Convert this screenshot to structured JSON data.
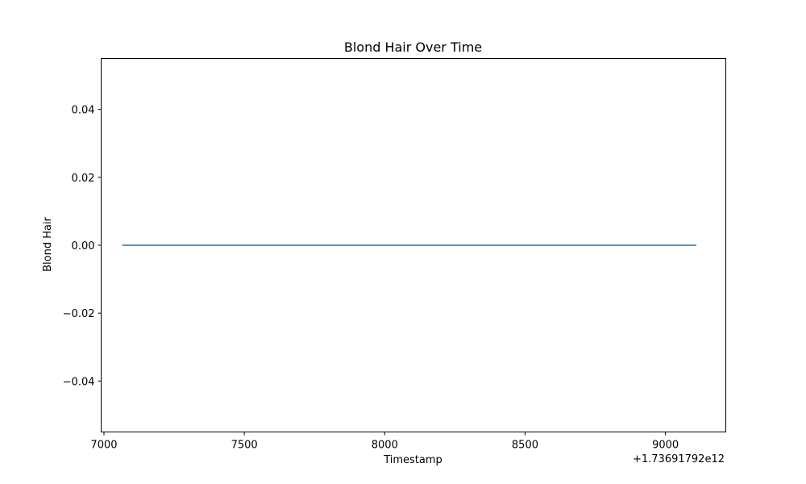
{
  "chart_data": {
    "type": "line",
    "title": "Blond Hair Over Time",
    "xlabel": "Timestamp",
    "ylabel": "Blond Hair",
    "x_offset_label": "+1.73691792e12",
    "xlim": [
      6990,
      9215
    ],
    "ylim": [
      -0.055,
      0.055
    ],
    "xticks": [
      7000,
      7500,
      8000,
      8500,
      9000
    ],
    "xtick_labels": [
      "7000",
      "7500",
      "8000",
      "8500",
      "9000"
    ],
    "yticks": [
      0.04,
      0.02,
      0.0,
      -0.02,
      -0.04
    ],
    "ytick_labels": [
      "0.04",
      "0.02",
      "0.00",
      "−0.02",
      "−0.04"
    ],
    "grid": false,
    "series": [
      {
        "color": "#1f77b4",
        "x": [
          7065,
          9110
        ],
        "y": [
          0,
          0
        ]
      }
    ]
  }
}
